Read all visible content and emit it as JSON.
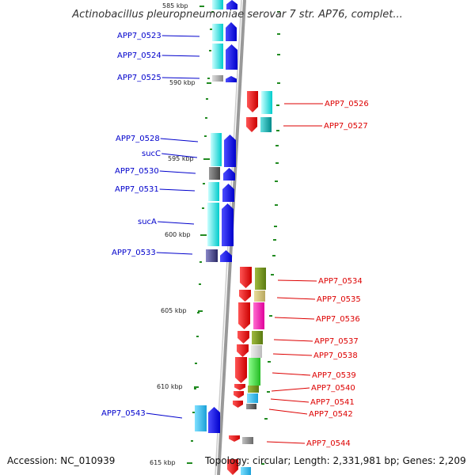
{
  "title": "Actinobacillus pleuropneumoniae serovar 7 str. AP76, complet...",
  "accession": "Accession: NC_010939",
  "topology": "Topology: circular; Length: 2,331,981 bp; Genes: 2,209",
  "colors": {
    "label_forward": "#0000cc",
    "label_reverse": "#dd0000",
    "tick": "#228b22",
    "backbone": "#999999"
  },
  "ruler": [
    "585 kbp",
    "590 kbp",
    "595 kbp",
    "600 kbp",
    "605 kbp",
    "610 kbp",
    "615 kbp"
  ],
  "genes_forward": [
    {
      "label": "APP7_0523"
    },
    {
      "label": "APP7_0524"
    },
    {
      "label": "APP7_0525"
    },
    {
      "label": "APP7_0528"
    },
    {
      "label": "sucC"
    },
    {
      "label": "APP7_0530"
    },
    {
      "label": "APP7_0531"
    },
    {
      "label": "sucA"
    },
    {
      "label": "APP7_0533"
    },
    {
      "label": "APP7_0543"
    }
  ],
  "genes_reverse": [
    {
      "label": "APP7_0526"
    },
    {
      "label": "APP7_0527"
    },
    {
      "label": "APP7_0534"
    },
    {
      "label": "APP7_0535"
    },
    {
      "label": "APP7_0536"
    },
    {
      "label": "APP7_0537"
    },
    {
      "label": "APP7_0538"
    },
    {
      "label": "APP7_0539"
    },
    {
      "label": "APP7_0540"
    },
    {
      "label": "APP7_0541"
    },
    {
      "label": "APP7_0542"
    },
    {
      "label": "APP7_0544"
    }
  ]
}
